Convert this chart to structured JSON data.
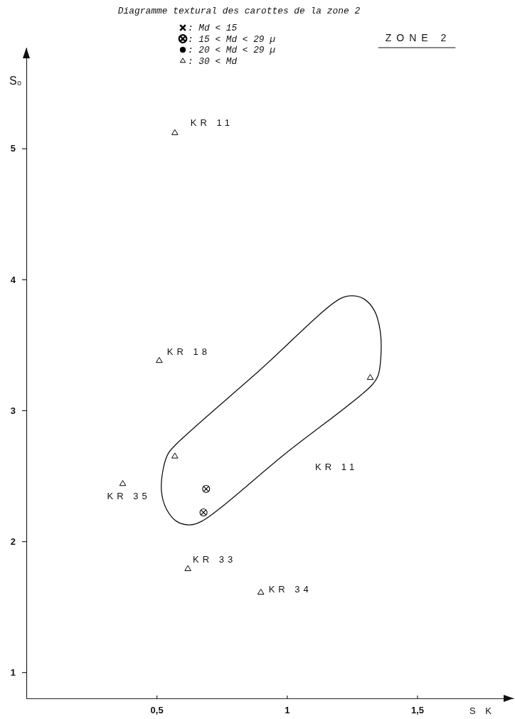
{
  "chart_data": {
    "type": "scatter",
    "title": "Diagramme textural des carottes de la zone 2",
    "xlabel": "S K",
    "ylabel": "S₀",
    "xlim": [
      0,
      1.87
    ],
    "xticks": [
      {
        "value": 0.5,
        "label": "0,5"
      },
      1,
      {
        "value": 1.5,
        "label": "1,5"
      }
    ],
    "ylim": [
      0.8,
      5.77
    ],
    "yticks": [
      1,
      2,
      3,
      4,
      5
    ],
    "legend": "top",
    "series": [
      {
        "name": ": Md < 15",
        "color": "#000000",
        "marker": "cross"
      },
      {
        "name": ": 15 < Md < 29 µ",
        "color": "#000000",
        "x": [
          0.69,
          0.68
        ],
        "values": [
          2.4,
          2.22
        ]
      },
      {
        "name": ": 20 < Md < 29 µ",
        "color": "#000000",
        "marker": "circle"
      },
      {
        "name": ": 30 < Md",
        "color": "#000000",
        "marker": "triangle",
        "x": [
          0.57,
          0.51,
          1.32,
          0.57,
          0.37,
          0.62,
          0.9
        ],
        "values": [
          5.12,
          3.38,
          3.25,
          2.65,
          2.44,
          1.79,
          1.61
        ]
      }
    ],
    "annotations": [
      "ZONE 2",
      {
        "text": "KR 11",
        "x": 0.57,
        "y": 5.12
      },
      {
        "text": "KR 18",
        "x": 0.51,
        "y": 3.38
      },
      "KR 11",
      {
        "text": "KR 35",
        "x": 0.37,
        "y": 2.44
      },
      {
        "text": "KR 33",
        "x": 0.62,
        "y": 1.79
      },
      {
        "text": "KR 34",
        "x": 0.9,
        "y": 1.61
      }
    ]
  }
}
